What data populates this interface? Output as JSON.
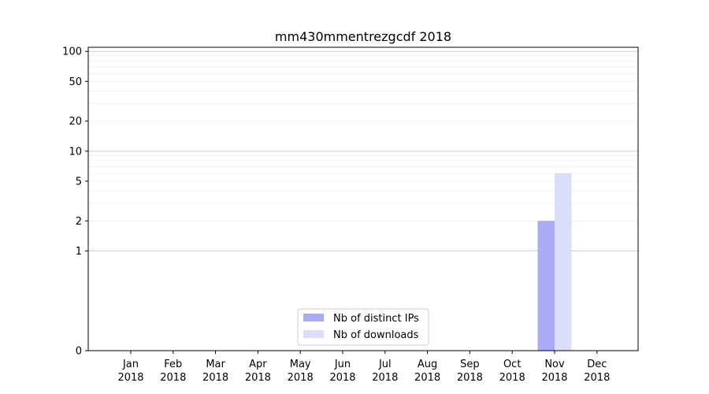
{
  "chart_data": {
    "type": "bar",
    "title": "mm430mmentrezgcdf 2018",
    "xlabel": "",
    "ylabel": "",
    "y_scale": "symlog",
    "ylim": [
      0,
      110
    ],
    "y_ticks": [
      0,
      1,
      2,
      5,
      10,
      20,
      50,
      100
    ],
    "categories": [
      {
        "month": "Jan",
        "year": "2018"
      },
      {
        "month": "Feb",
        "year": "2018"
      },
      {
        "month": "Mar",
        "year": "2018"
      },
      {
        "month": "Apr",
        "year": "2018"
      },
      {
        "month": "May",
        "year": "2018"
      },
      {
        "month": "Jun",
        "year": "2018"
      },
      {
        "month": "Jul",
        "year": "2018"
      },
      {
        "month": "Aug",
        "year": "2018"
      },
      {
        "month": "Sep",
        "year": "2018"
      },
      {
        "month": "Oct",
        "year": "2018"
      },
      {
        "month": "Nov",
        "year": "2018"
      },
      {
        "month": "Dec",
        "year": "2018"
      }
    ],
    "series": [
      {
        "name": "Nb of distinct IPs",
        "color": "#aaaaf5",
        "values": [
          0,
          0,
          0,
          0,
          0,
          0,
          0,
          0,
          0,
          0,
          2,
          0
        ]
      },
      {
        "name": "Nb of downloads",
        "color": "#dcdcfb",
        "values": [
          0,
          0,
          0,
          0,
          0,
          0,
          0,
          0,
          0,
          0,
          6,
          0
        ]
      }
    ],
    "legend_position": "bottom-center",
    "grid": true
  }
}
